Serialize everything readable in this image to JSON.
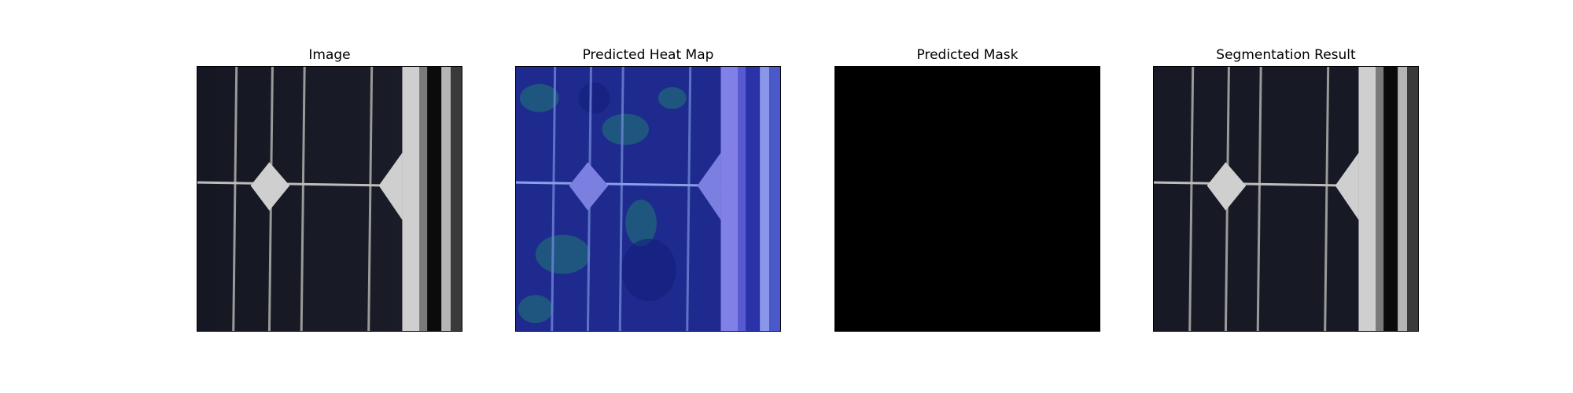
{
  "panels": [
    {
      "title": "Image"
    },
    {
      "title": "Predicted Heat Map"
    },
    {
      "title": "Predicted Mask"
    },
    {
      "title": "Segmentation Result"
    }
  ],
  "colors": {
    "cell_dark": "#12141f",
    "busbar": "#c9c9c9",
    "heat_base": "#1f2a8c",
    "heat_hot": "#1f7f6f",
    "mask": "#000000"
  }
}
